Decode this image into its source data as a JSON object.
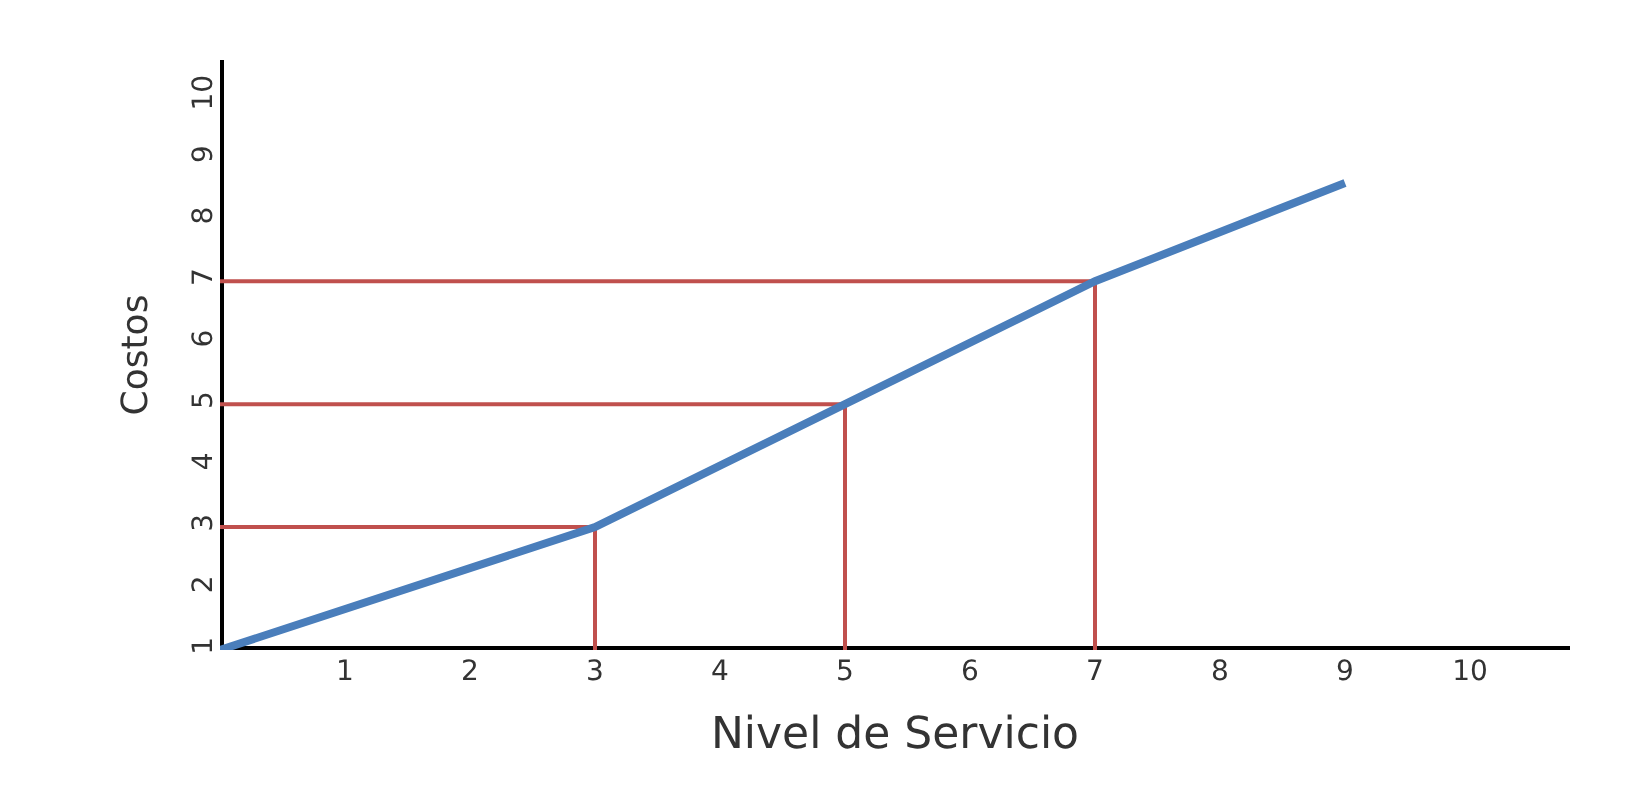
{
  "chart_data": {
    "type": "line",
    "xlabel": "Nivel de Servicio",
    "ylabel": "Costos",
    "xlim": [
      0,
      10.8
    ],
    "ylim": [
      1,
      10.6
    ],
    "xticks": [
      1,
      2,
      3,
      4,
      5,
      6,
      7,
      8,
      9,
      10
    ],
    "yticks": [
      1,
      2,
      3,
      4,
      5,
      6,
      7,
      8,
      9,
      10
    ],
    "marker": "none",
    "line_style": "solid",
    "series": [
      {
        "color": "#4a7ebb",
        "x": [
          0,
          3,
          5,
          7,
          9
        ],
        "values": [
          1,
          3,
          5,
          7,
          8.6
        ]
      },
      {
        "color": "#c0504d",
        "x": [
          3,
          3,
          0
        ],
        "values": [
          1,
          3,
          3
        ]
      },
      {
        "color": "#c0504d",
        "x": [
          5,
          5,
          0
        ],
        "values": [
          1,
          5,
          5
        ]
      },
      {
        "color": "#c0504d",
        "x": [
          7,
          7,
          0
        ],
        "values": [
          1,
          7,
          7
        ]
      }
    ]
  }
}
